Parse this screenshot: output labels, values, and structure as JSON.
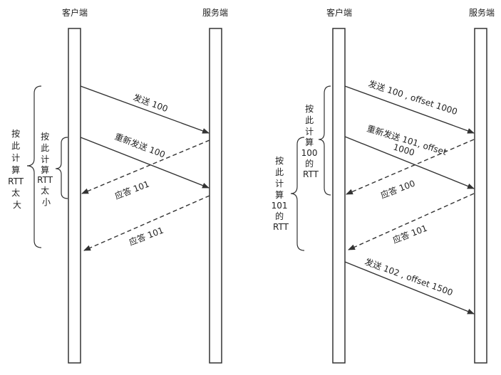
{
  "headers": {
    "left_client": "客户端",
    "left_server": "服务端",
    "right_client": "客户端",
    "right_server": "服务端"
  },
  "left": {
    "msg_send_100": "发送 100",
    "msg_resend_100": "重新发送 100",
    "msg_ack_101_a": "应答 101",
    "msg_ack_101_b": "应答 101",
    "brace_outer_label": [
      "按",
      "此",
      "计",
      "算",
      "RTT",
      "太",
      "大"
    ],
    "brace_inner_label": [
      "按",
      "此",
      "计",
      "算",
      "RTT",
      "太",
      "小"
    ]
  },
  "right": {
    "msg_send_100": "发送 100 , offset 1000",
    "msg_resend_101_l1": "重新发送 101, offset",
    "msg_resend_101_l2": "1000",
    "msg_ack_100": "应答 100",
    "msg_ack_101": "应答 101",
    "msg_send_102": "发送 102 , offset 1500",
    "brace_upper_label": [
      "按",
      "此",
      "计",
      "算",
      "100",
      "的",
      "RTT"
    ],
    "brace_lower_label": [
      "按",
      "此",
      "计",
      "算",
      "101",
      "的",
      "RTT"
    ]
  }
}
